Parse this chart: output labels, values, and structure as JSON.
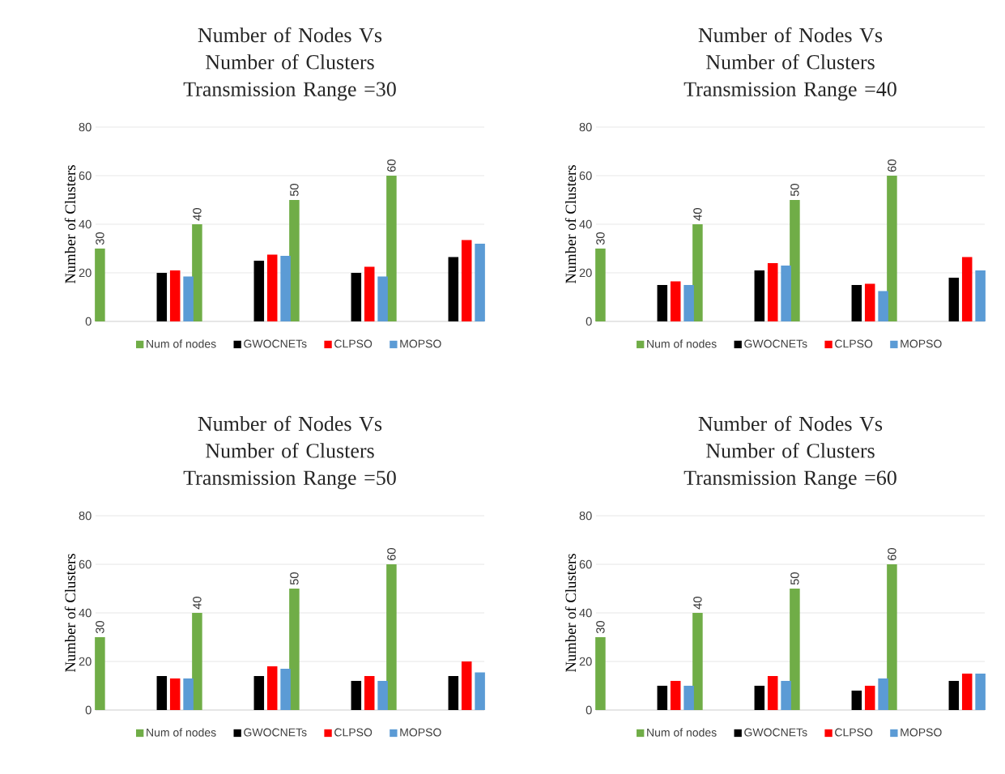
{
  "chart_data": [
    {
      "type": "bar",
      "title": "Number of Nodes Vs Number of Clusters",
      "subtitle": "Transmission Range =30",
      "ylabel": "Number of Clusters",
      "categories": [
        null,
        null,
        null,
        null,
        null,
        null,
        null,
        null
      ],
      "ylim": [
        0,
        80
      ],
      "yticks": [
        0,
        20,
        40,
        60,
        80
      ],
      "grid": "y",
      "legend": "bottom",
      "series": [
        {
          "name": "Num of nodes",
          "color": "#70ad47",
          "values": [
            30,
            null,
            40,
            null,
            50,
            null,
            60,
            null
          ],
          "value_labels": [
            "30",
            null,
            "40",
            null,
            "50",
            null,
            "60",
            null
          ]
        },
        {
          "name": "GWOCNETs",
          "color": "#000000",
          "values": [
            null,
            20,
            null,
            25,
            null,
            20,
            null,
            26.5
          ]
        },
        {
          "name": "CLPSO",
          "color": "#ff0000",
          "values": [
            null,
            21,
            null,
            27.5,
            null,
            22.5,
            null,
            33.5
          ]
        },
        {
          "name": "MOPSO",
          "color": "#5b9bd5",
          "values": [
            null,
            18.5,
            null,
            27,
            null,
            18.5,
            null,
            32
          ]
        }
      ]
    },
    {
      "type": "bar",
      "title": "Number of Nodes Vs Number of Clusters",
      "subtitle": "Transmission Range =40",
      "ylabel": "Number of Clusters",
      "categories": [
        null,
        null,
        null,
        null,
        null,
        null,
        null,
        null
      ],
      "ylim": [
        0,
        80
      ],
      "yticks": [
        0,
        20,
        40,
        60,
        80
      ],
      "grid": "y",
      "legend": "bottom",
      "series": [
        {
          "name": "Num of nodes",
          "color": "#70ad47",
          "values": [
            30,
            null,
            40,
            null,
            50,
            null,
            60,
            null
          ],
          "value_labels": [
            "30",
            null,
            "40",
            null,
            "50",
            null,
            "60",
            null
          ]
        },
        {
          "name": "GWOCNETs",
          "color": "#000000",
          "values": [
            null,
            15,
            null,
            21,
            null,
            15,
            null,
            18
          ]
        },
        {
          "name": "CLPSO",
          "color": "#ff0000",
          "values": [
            null,
            16.5,
            null,
            24,
            null,
            15.5,
            null,
            26.5
          ]
        },
        {
          "name": "MOPSO",
          "color": "#5b9bd5",
          "values": [
            null,
            15,
            null,
            23,
            null,
            12.5,
            null,
            21
          ]
        }
      ]
    },
    {
      "type": "bar",
      "title": "Number of Nodes Vs Number of Clusters",
      "subtitle": "Transmission Range =50",
      "ylabel": "Number of Clusters",
      "categories": [
        null,
        null,
        null,
        null,
        null,
        null,
        null,
        null
      ],
      "ylim": [
        0,
        80
      ],
      "yticks": [
        0,
        20,
        40,
        60,
        80
      ],
      "grid": "y",
      "legend": "bottom",
      "series": [
        {
          "name": "Num of nodes",
          "color": "#70ad47",
          "values": [
            30,
            null,
            40,
            null,
            50,
            null,
            60,
            null
          ],
          "value_labels": [
            "30",
            null,
            "40",
            null,
            "50",
            null,
            "60",
            null
          ]
        },
        {
          "name": "GWOCNETs",
          "color": "#000000",
          "values": [
            null,
            14,
            null,
            14,
            null,
            12,
            null,
            14
          ]
        },
        {
          "name": "CLPSO",
          "color": "#ff0000",
          "values": [
            null,
            13,
            null,
            18,
            null,
            14,
            null,
            20
          ]
        },
        {
          "name": "MOPSO",
          "color": "#5b9bd5",
          "values": [
            null,
            13,
            null,
            17,
            null,
            12,
            null,
            15.5
          ]
        }
      ]
    },
    {
      "type": "bar",
      "title": "Number of Nodes Vs Number of Clusters",
      "subtitle": "Transmission Range =60",
      "ylabel": "Number of Clusters",
      "categories": [
        null,
        null,
        null,
        null,
        null,
        null,
        null,
        null
      ],
      "ylim": [
        0,
        80
      ],
      "yticks": [
        0,
        20,
        40,
        60,
        80
      ],
      "grid": "y",
      "legend": "bottom",
      "series": [
        {
          "name": "Num of nodes",
          "color": "#70ad47",
          "values": [
            30,
            null,
            40,
            null,
            50,
            null,
            60,
            null
          ],
          "value_labels": [
            "30",
            null,
            "40",
            null,
            "50",
            null,
            "60",
            null
          ]
        },
        {
          "name": "GWOCNETs",
          "color": "#000000",
          "values": [
            null,
            10,
            null,
            10,
            null,
            8,
            null,
            12
          ]
        },
        {
          "name": "CLPSO",
          "color": "#ff0000",
          "values": [
            null,
            12,
            null,
            14,
            null,
            10,
            null,
            15
          ]
        },
        {
          "name": "MOPSO",
          "color": "#5b9bd5",
          "values": [
            null,
            10,
            null,
            12,
            null,
            13,
            null,
            15
          ]
        }
      ]
    }
  ]
}
